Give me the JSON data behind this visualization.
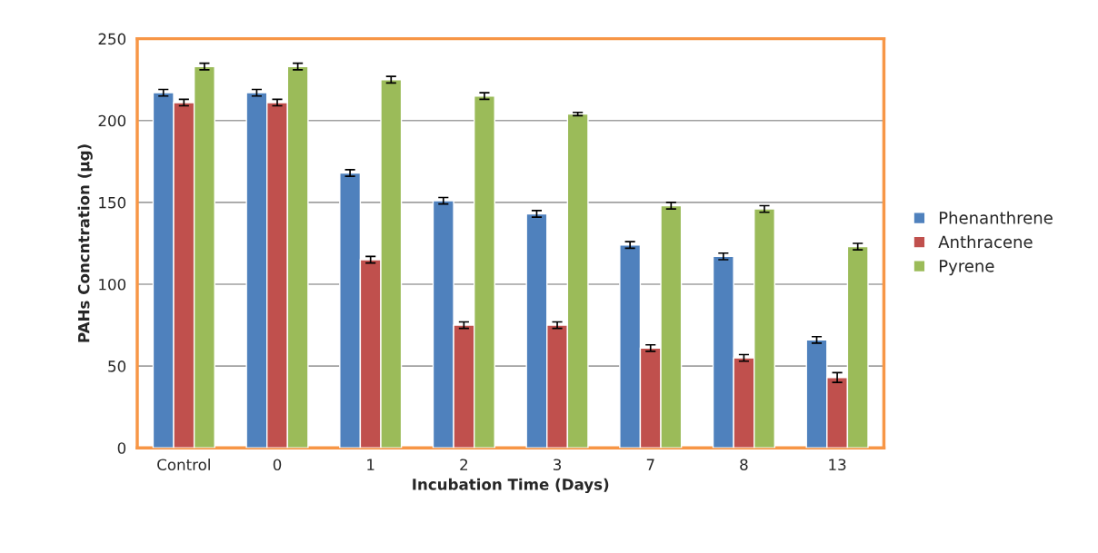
{
  "chart_data": {
    "type": "bar",
    "xlabel": "Incubation Time (Days)",
    "ylabel": "PAHs Concntration (µg)",
    "categories": [
      "Control",
      "0",
      "1",
      "2",
      "3",
      "7",
      "8",
      "13"
    ],
    "series": [
      {
        "name": "Phenanthrene",
        "color": "#4f81bd",
        "values": [
          217,
          217,
          168,
          151,
          143,
          124,
          117,
          66
        ],
        "errors": [
          2,
          2,
          2,
          2,
          2,
          2,
          2,
          2
        ]
      },
      {
        "name": "Anthracene",
        "color": "#c0504d",
        "values": [
          211,
          211,
          115,
          75,
          75,
          61,
          55,
          43
        ],
        "errors": [
          2,
          2,
          2,
          2,
          2,
          2,
          2,
          3
        ]
      },
      {
        "name": "Pyrene",
        "color": "#9bbb59",
        "values": [
          233,
          233,
          225,
          215,
          204,
          148,
          146,
          123
        ],
        "errors": [
          2,
          2,
          2,
          2,
          1,
          2,
          2,
          2
        ]
      }
    ],
    "ylim": [
      0,
      250
    ],
    "yticks": [
      0,
      50,
      100,
      150,
      200,
      250
    ],
    "grid": "y",
    "legend": "right"
  }
}
